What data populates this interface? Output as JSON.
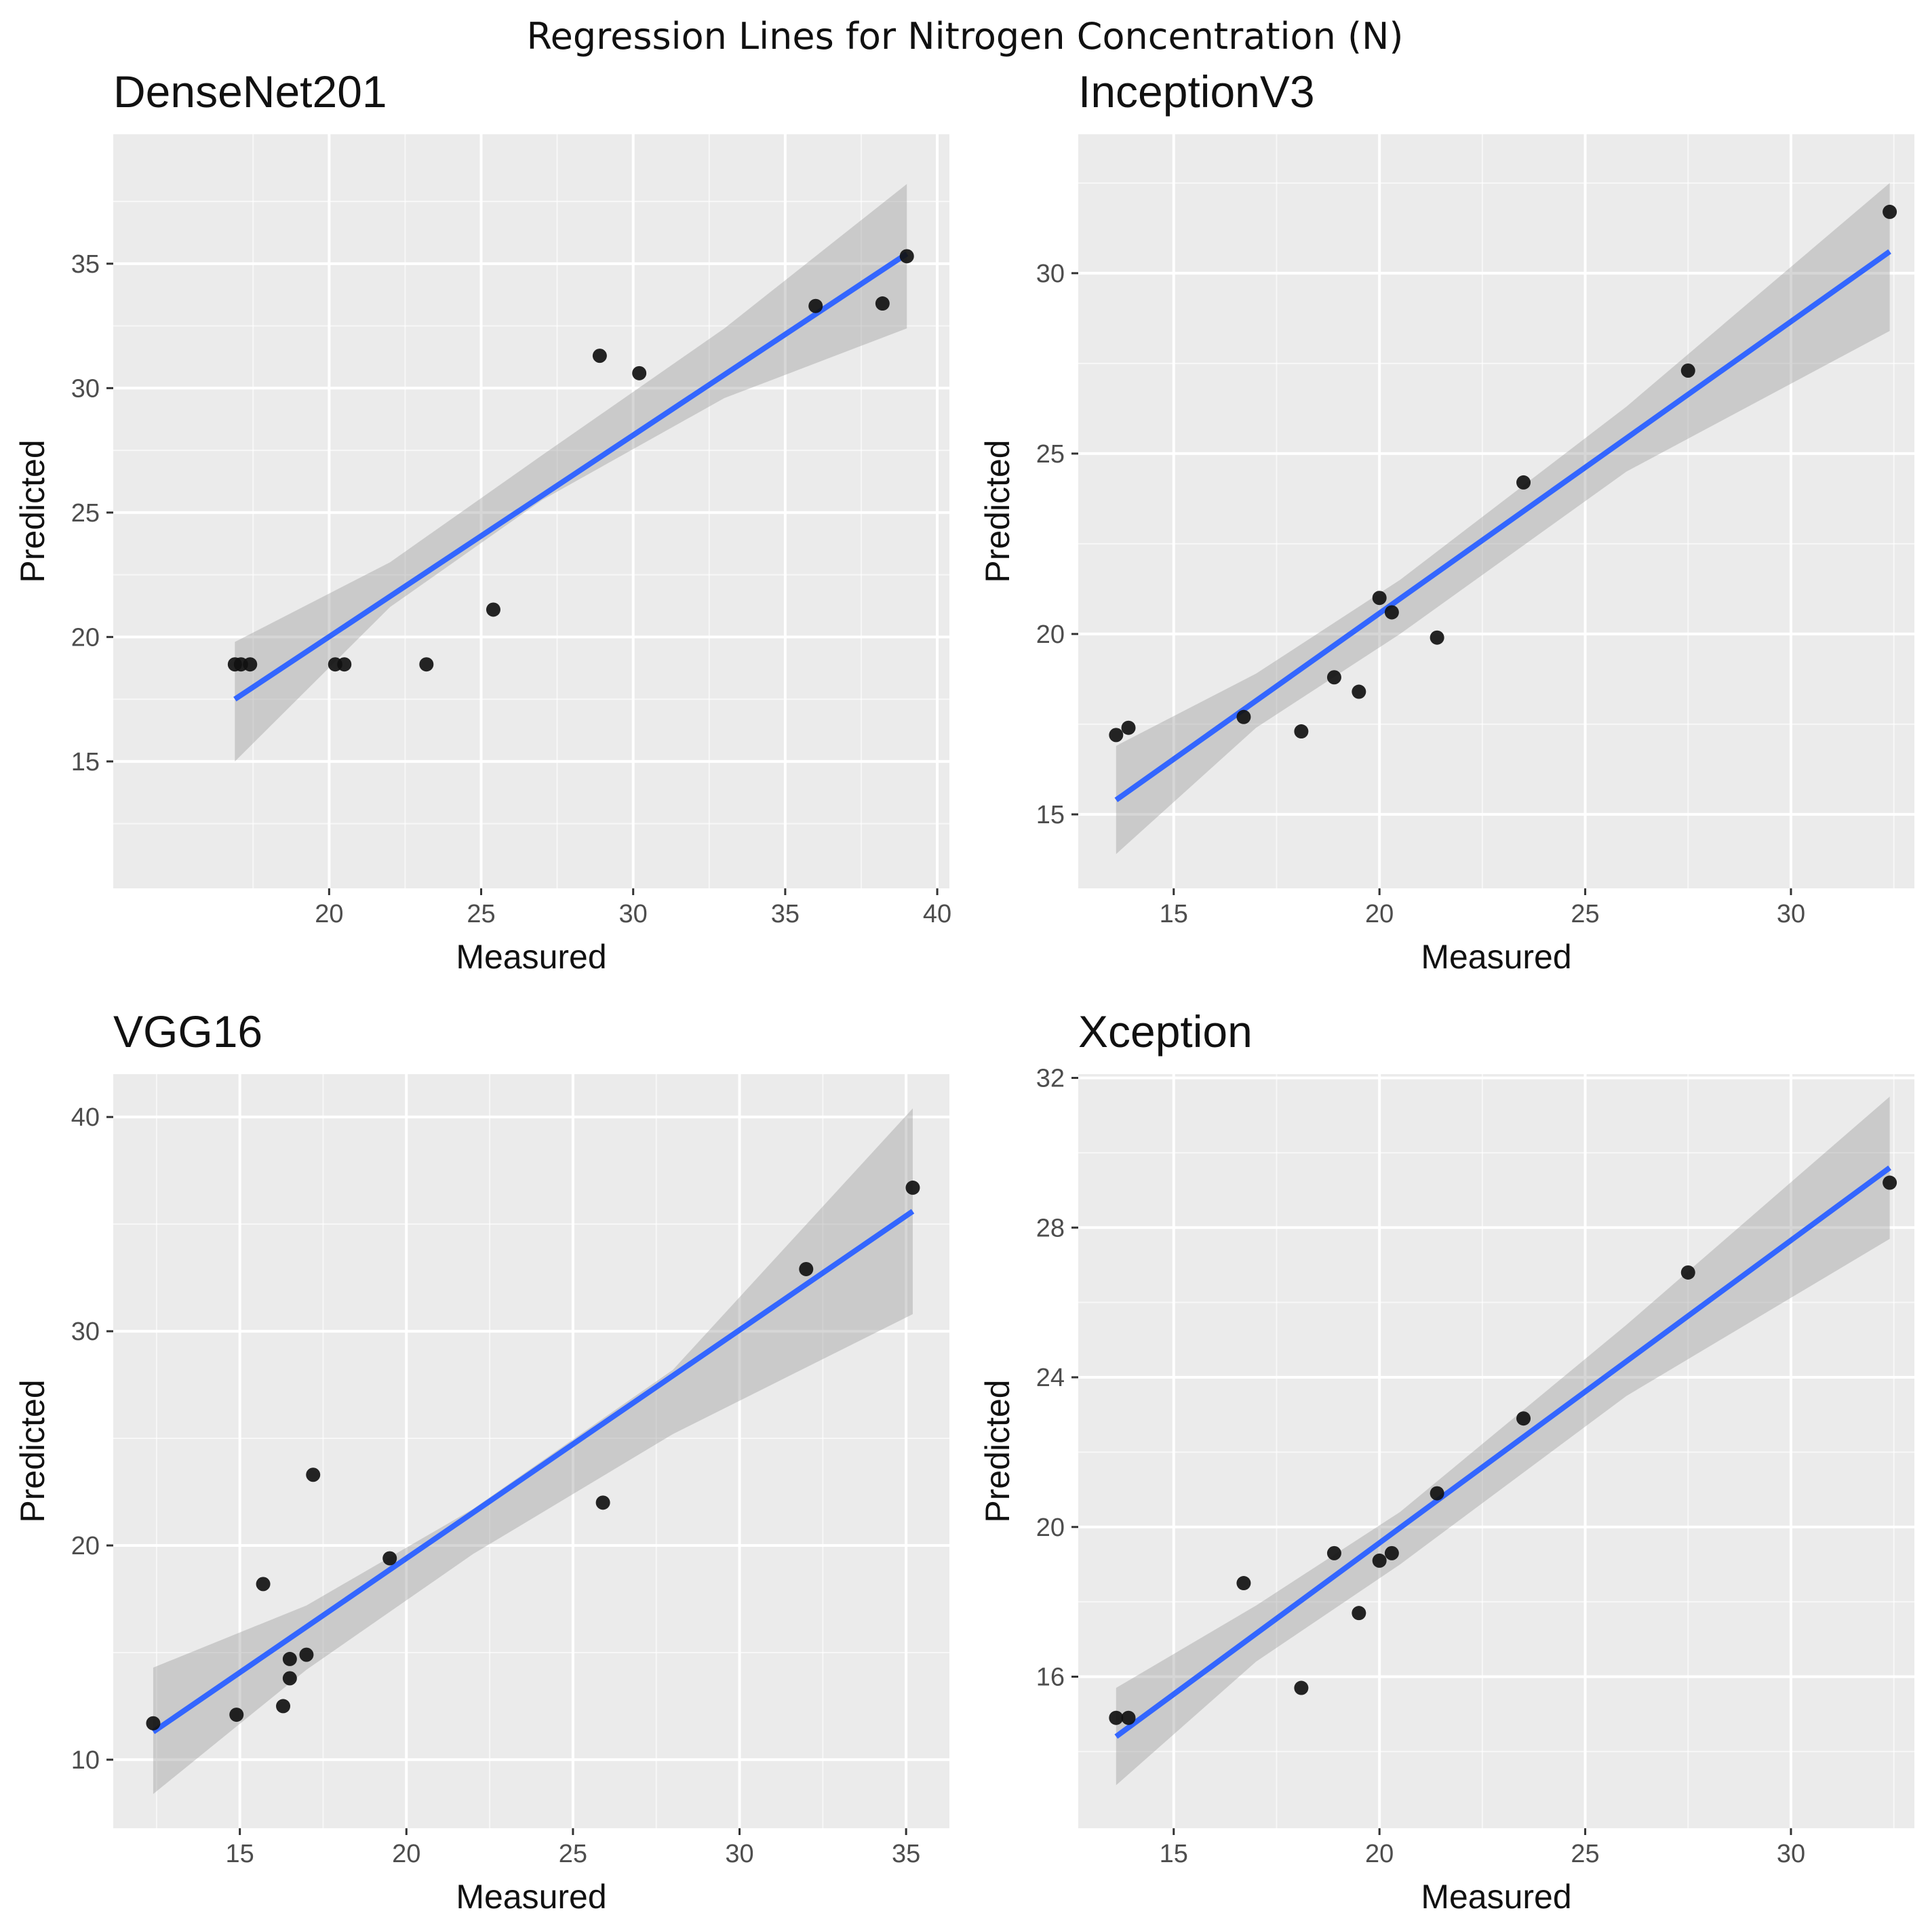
{
  "figure_title": "Regression Lines for Nitrogen Concentration (N)",
  "colors": {
    "panel_background": "#EBEBEB",
    "grid_major": "#FFFFFF",
    "regression_line": "#3366FF",
    "confidence_band": "#999999",
    "points": "#111111",
    "tick_text": "#4D4D4D"
  },
  "chart_data": [
    {
      "type": "scatter",
      "title": "DenseNet201",
      "xlabel": "Measured",
      "ylabel": "Predicted",
      "xlim": [
        12.9,
        40.4
      ],
      "ylim": [
        9.9,
        40.2
      ],
      "xticks": [
        20,
        25,
        30,
        35,
        40
      ],
      "yticks": [
        15,
        20,
        25,
        30,
        35
      ],
      "xtick_labels": [
        "20",
        "25",
        "30",
        "35",
        "40"
      ],
      "ytick_labels": [
        "15",
        "20",
        "25",
        "30",
        "35"
      ],
      "points": {
        "x": [
          16.9,
          17.1,
          17.4,
          20.2,
          20.5,
          23.2,
          25.4,
          28.9,
          30.2,
          36.0,
          38.2,
          39.0
        ],
        "y": [
          18.9,
          18.9,
          18.9,
          18.9,
          18.9,
          18.9,
          21.1,
          31.3,
          30.6,
          33.3,
          33.4,
          35.3
        ]
      },
      "fit_line": {
        "x": [
          16.9,
          39.0
        ],
        "y": [
          17.5,
          35.4
        ]
      },
      "confidence_band": {
        "x": [
          16.9,
          22.0,
          27.0,
          33.0,
          39.0
        ],
        "lower": [
          15.0,
          21.2,
          25.5,
          29.6,
          32.4
        ],
        "upper": [
          19.8,
          23.0,
          27.3,
          32.4,
          38.2
        ]
      }
    },
    {
      "type": "scatter",
      "title": "InceptionV3",
      "xlabel": "Measured",
      "ylabel": "Predicted",
      "xlim": [
        12.68,
        33.0
      ],
      "ylim": [
        12.95,
        33.85
      ],
      "xticks": [
        15,
        20,
        25,
        30
      ],
      "yticks": [
        15,
        20,
        25,
        30
      ],
      "xtick_labels": [
        "15",
        "20",
        "25",
        "30"
      ],
      "ytick_labels": [
        "15",
        "20",
        "25",
        "30"
      ],
      "points": {
        "x": [
          13.6,
          13.9,
          16.7,
          18.1,
          18.9,
          19.5,
          20.0,
          20.3,
          21.4,
          23.5,
          27.5,
          32.4
        ],
        "y": [
          17.2,
          17.4,
          17.7,
          17.3,
          18.8,
          18.4,
          21.0,
          20.6,
          19.9,
          24.2,
          27.3,
          31.7
        ]
      },
      "fit_line": {
        "x": [
          13.6,
          32.4
        ],
        "y": [
          15.4,
          30.6
        ]
      },
      "confidence_band": {
        "x": [
          13.6,
          17.0,
          20.5,
          26.0,
          32.4
        ],
        "lower": [
          13.9,
          17.4,
          20.0,
          24.5,
          28.4
        ],
        "upper": [
          16.9,
          18.9,
          21.5,
          26.3,
          32.5
        ]
      }
    },
    {
      "type": "scatter",
      "title": "VGG16",
      "xlabel": "Measured",
      "ylabel": "Predicted",
      "xlim": [
        11.2,
        36.3
      ],
      "ylim": [
        6.8,
        42.0
      ],
      "xticks": [
        15,
        20,
        25,
        30,
        35
      ],
      "yticks": [
        10,
        20,
        30,
        40
      ],
      "xtick_labels": [
        "15",
        "20",
        "25",
        "30",
        "35"
      ],
      "ytick_labels": [
        "10",
        "20",
        "30",
        "40"
      ],
      "points": {
        "x": [
          12.4,
          14.9,
          15.7,
          16.3,
          16.5,
          16.5,
          17.0,
          17.2,
          19.5,
          25.9,
          32.0,
          35.2
        ],
        "y": [
          11.7,
          12.1,
          18.2,
          12.5,
          13.8,
          14.7,
          14.9,
          23.3,
          19.4,
          22.0,
          32.9,
          36.7
        ]
      },
      "fit_line": {
        "x": [
          12.4,
          35.2
        ],
        "y": [
          11.3,
          35.6
        ]
      },
      "confidence_band": {
        "x": [
          12.4,
          17.0,
          22.0,
          28.0,
          35.2
        ],
        "lower": [
          8.4,
          14.2,
          19.6,
          25.2,
          30.8
        ],
        "upper": [
          14.3,
          17.2,
          21.7,
          28.2,
          40.4
        ]
      }
    },
    {
      "type": "scatter",
      "title": "Xception",
      "xlabel": "Measured",
      "ylabel": "Predicted",
      "xlim": [
        12.68,
        33.0
      ],
      "ylim": [
        11.95,
        32.1
      ],
      "xticks": [
        15,
        20,
        25,
        30
      ],
      "yticks": [
        16,
        20,
        24,
        28,
        32
      ],
      "xtick_labels": [
        "15",
        "20",
        "25",
        "30"
      ],
      "ytick_labels": [
        "16",
        "20",
        "24",
        "28",
        "32"
      ],
      "points": {
        "x": [
          13.6,
          13.9,
          16.7,
          18.1,
          18.9,
          19.5,
          20.0,
          20.3,
          21.4,
          23.5,
          27.5,
          32.4
        ],
        "y": [
          14.9,
          14.9,
          18.5,
          15.7,
          19.3,
          17.7,
          19.1,
          19.3,
          20.9,
          22.9,
          26.8,
          29.2
        ]
      },
      "fit_line": {
        "x": [
          13.6,
          32.4
        ],
        "y": [
          14.4,
          29.6
        ]
      },
      "confidence_band": {
        "x": [
          13.6,
          17.0,
          20.5,
          26.0,
          32.4
        ],
        "lower": [
          13.1,
          16.4,
          19.0,
          23.5,
          27.7
        ],
        "upper": [
          15.7,
          17.9,
          20.4,
          25.4,
          31.5
        ]
      }
    }
  ]
}
